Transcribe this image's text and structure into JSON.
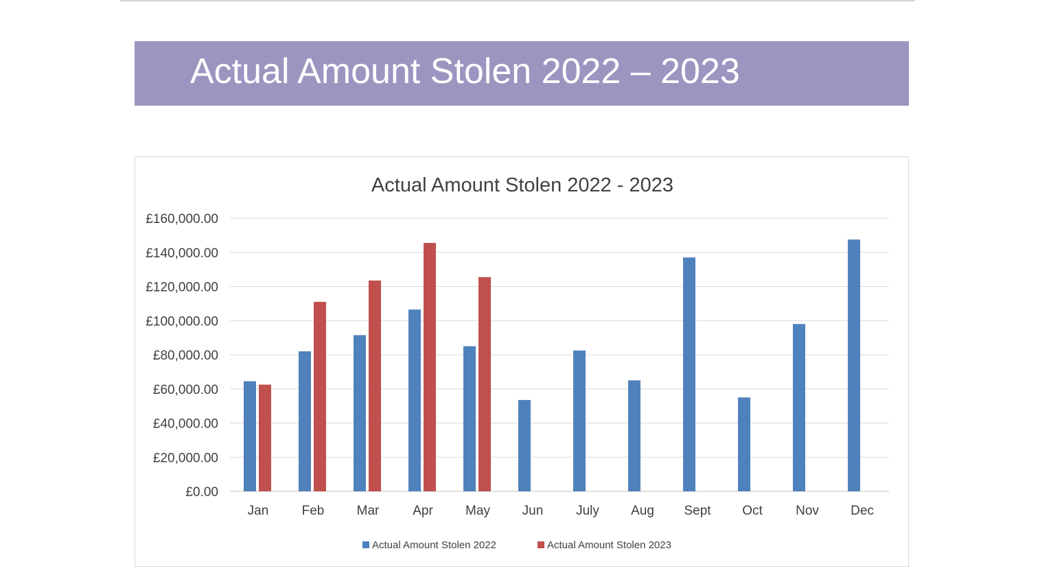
{
  "banner": {
    "title": "Actual Amount Stolen 2022 – 2023"
  },
  "colors": {
    "banner_bg": "#9d95c0",
    "series_2022": "#4f81bd",
    "series_2023": "#c0504d",
    "gridline": "#d9d9d9"
  },
  "chart_data": {
    "type": "bar",
    "title": "Actual Amount Stolen 2022 - 2023",
    "xlabel": "",
    "ylabel": "",
    "categories": [
      "Jan",
      "Feb",
      "Mar",
      "Apr",
      "May",
      "Jun",
      "July",
      "Aug",
      "Sept",
      "Oct",
      "Nov",
      "Dec"
    ],
    "ylim": [
      0,
      160000
    ],
    "yticks": [
      0,
      20000,
      40000,
      60000,
      80000,
      100000,
      120000,
      140000,
      160000
    ],
    "ytick_labels": [
      "£0.00",
      "£20,000.00",
      "£40,000.00",
      "£60,000.00",
      "£80,000.00",
      "£100,000.00",
      "£120,000.00",
      "£140,000.00",
      "£160,000.00"
    ],
    "grid": true,
    "legend_position": "bottom",
    "series": [
      {
        "name": "Actual Amount Stolen 2022",
        "color": "#4f81bd",
        "values": [
          64500,
          82000,
          91500,
          106500,
          85000,
          53500,
          82500,
          65000,
          137000,
          55000,
          98000,
          147500
        ]
      },
      {
        "name": "Actual Amount Stolen 2023",
        "color": "#c0504d",
        "values": [
          62500,
          111000,
          123500,
          145500,
          125500,
          null,
          null,
          null,
          null,
          null,
          null,
          null
        ]
      }
    ]
  }
}
